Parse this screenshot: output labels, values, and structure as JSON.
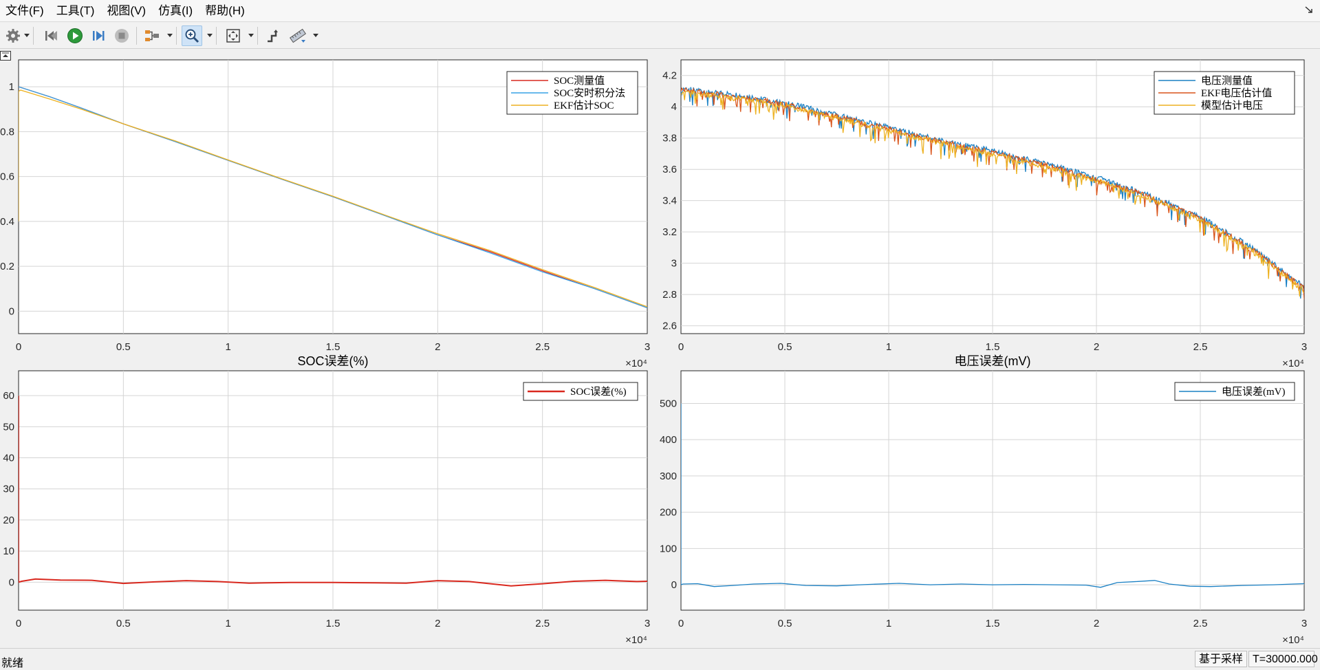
{
  "menu": [
    "文件(F)",
    "工具(T)",
    "视图(V)",
    "仿真(I)",
    "帮助(H)"
  ],
  "toolbar": {
    "icons": [
      "gear-icon",
      "step-back-icon",
      "run-icon",
      "step-forward-icon",
      "stop-icon",
      "signal-select-icon",
      "zoom-in-icon",
      "fit-to-view-icon",
      "cursor-measure-icon",
      "ruler-measure-icon"
    ]
  },
  "status": {
    "left": "就绪",
    "mode": "基于采样",
    "time": "T=30000.000"
  },
  "colors": {
    "red": "#d9281e",
    "blue": "#1a80c4",
    "lightblue": "#37a2e6",
    "orange": "#d9541a",
    "yellow": "#edb120"
  },
  "chart_data": [
    {
      "type": "line",
      "title": "",
      "x_range": [
        0,
        30000
      ],
      "x_ticks": [
        0,
        0.5,
        1,
        1.5,
        2,
        2.5,
        3
      ],
      "x_exponent": "×10⁴",
      "ylim": [
        -0.1,
        1.12
      ],
      "y_ticks": [
        0,
        0.2,
        0.4,
        0.6,
        0.8,
        1
      ],
      "grid": true,
      "legend": "top-right",
      "series": [
        {
          "name": "SOC测量值",
          "color": "#d9281e",
          "x": [
            0,
            1500,
            3000,
            5000,
            7500,
            10000,
            12500,
            15000,
            17500,
            20000,
            22500,
            25000,
            27500,
            30000
          ],
          "y": [
            1.0,
            0.955,
            0.905,
            0.835,
            0.755,
            0.672,
            0.59,
            0.51,
            0.425,
            0.34,
            0.265,
            0.18,
            0.1,
            0.015
          ]
        },
        {
          "name": "SOC安时积分法",
          "color": "#37a2e6",
          "x": [
            0,
            1500,
            3000,
            5000,
            7500,
            10000,
            12500,
            15000,
            17500,
            20000,
            22500,
            25000,
            27500,
            30000
          ],
          "y": [
            1.0,
            0.955,
            0.905,
            0.835,
            0.755,
            0.672,
            0.59,
            0.51,
            0.425,
            0.34,
            0.26,
            0.175,
            0.1,
            0.015
          ]
        },
        {
          "name": "EKF估计SOC",
          "color": "#edb120",
          "x": [
            0,
            0,
            100,
            1500,
            3000,
            5000,
            7500,
            10000,
            12500,
            15000,
            17500,
            20000,
            22500,
            25000,
            27500,
            30000
          ],
          "y": [
            0.4,
            0.98,
            0.985,
            0.945,
            0.9,
            0.835,
            0.758,
            0.674,
            0.592,
            0.512,
            0.428,
            0.345,
            0.27,
            0.185,
            0.105,
            0.02
          ]
        }
      ]
    },
    {
      "type": "line",
      "title": "",
      "x_range": [
        0,
        30000
      ],
      "x_ticks": [
        0,
        0.5,
        1,
        1.5,
        2,
        2.5,
        3
      ],
      "x_exponent": "×10⁴",
      "ylim": [
        2.55,
        4.3
      ],
      "y_ticks": [
        2.6,
        2.8,
        3,
        3.2,
        3.4,
        3.6,
        3.8,
        4,
        4.2
      ],
      "grid": true,
      "legend": "top-right",
      "series": [
        {
          "name": "电压测量值",
          "color": "#1a80c4",
          "x": [
            0,
            2500,
            5000,
            7500,
            10000,
            12500,
            15000,
            17500,
            20000,
            22500,
            25000,
            27500,
            30000
          ],
          "y": [
            4.12,
            4.08,
            4.03,
            3.95,
            3.87,
            3.79,
            3.72,
            3.64,
            3.55,
            3.44,
            3.3,
            3.1,
            2.85
          ]
        },
        {
          "name": "EKF电压估计值",
          "color": "#d9541a",
          "x": [
            0,
            2500,
            5000,
            7500,
            10000,
            12500,
            15000,
            17500,
            20000,
            22500,
            25000,
            27500,
            30000
          ],
          "y": [
            4.11,
            4.07,
            4.02,
            3.94,
            3.86,
            3.78,
            3.71,
            3.63,
            3.54,
            3.43,
            3.29,
            3.09,
            2.84
          ]
        },
        {
          "name": "模型估计电压",
          "color": "#edb120",
          "x": [
            0,
            2500,
            5000,
            7500,
            10000,
            12500,
            15000,
            17500,
            20000,
            22500,
            25000,
            27500,
            30000
          ],
          "y": [
            4.1,
            4.06,
            4.01,
            3.93,
            3.85,
            3.77,
            3.7,
            3.62,
            3.53,
            3.42,
            3.28,
            3.08,
            2.83
          ]
        }
      ]
    },
    {
      "type": "line",
      "title": "SOC误差(%)",
      "x_range": [
        0,
        30000
      ],
      "x_ticks": [
        0,
        0.5,
        1,
        1.5,
        2,
        2.5,
        3
      ],
      "x_exponent": "×10⁴",
      "ylim": [
        -9,
        68
      ],
      "y_ticks": [
        0,
        10,
        20,
        30,
        40,
        50,
        60
      ],
      "grid": true,
      "legend": "top-right",
      "series": [
        {
          "name": "SOC误差(%)",
          "color": "#d9281e",
          "x": [
            0,
            0,
            150,
            800,
            2000,
            3500,
            5000,
            6500,
            8000,
            9500,
            11000,
            13000,
            15000,
            17000,
            18500,
            20000,
            21500,
            23500,
            25000,
            26500,
            28000,
            29500,
            30000
          ],
          "y": [
            60,
            0,
            0.3,
            1.0,
            0.7,
            0.6,
            -0.4,
            0.1,
            0.5,
            0.2,
            -0.3,
            -0.1,
            -0.1,
            -0.2,
            -0.3,
            0.5,
            0.2,
            -1.2,
            -0.5,
            0.3,
            0.6,
            0.2,
            0.3
          ]
        }
      ]
    },
    {
      "type": "line",
      "title": "电压误差(mV)",
      "x_range": [
        0,
        30000
      ],
      "x_ticks": [
        0,
        0.5,
        1,
        1.5,
        2,
        2.5,
        3
      ],
      "x_exponent": "×10⁴",
      "ylim": [
        -70,
        590
      ],
      "y_ticks": [
        0,
        100,
        200,
        300,
        400,
        500
      ],
      "grid": true,
      "legend": "top-right",
      "series": [
        {
          "name": "电压误差(mV)",
          "color": "#1a80c4",
          "x": [
            0,
            0,
            100,
            800,
            1600,
            2500,
            3500,
            4800,
            6000,
            7500,
            9000,
            10500,
            12000,
            13500,
            15000,
            16500,
            18000,
            19500,
            20200,
            21000,
            22000,
            22800,
            23500,
            24500,
            25500,
            27000,
            28500,
            29500,
            30000
          ],
          "y": [
            500,
            0,
            2,
            3,
            -5,
            -2,
            2,
            4,
            -2,
            -3,
            1,
            4,
            0,
            2,
            0,
            1,
            0,
            -1,
            -7,
            6,
            9,
            12,
            2,
            -4,
            -5,
            -2,
            0,
            2,
            3
          ]
        }
      ]
    }
  ]
}
